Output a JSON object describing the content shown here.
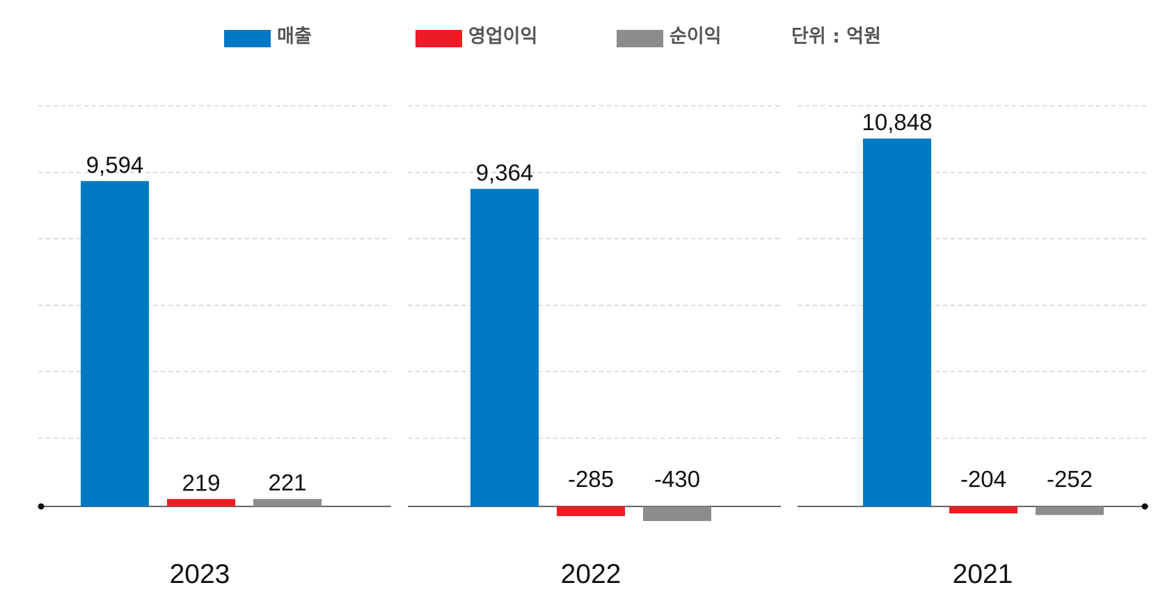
{
  "chart_data": {
    "type": "bar",
    "unit_label": "단위 : 억원",
    "legend_position": "top",
    "grid": true,
    "ylim": [
      -430,
      12000
    ],
    "series": [
      {
        "name": "매출",
        "color": "#0079c4"
      },
      {
        "name": "영업이익",
        "color": "#ec1c24"
      },
      {
        "name": "순이익",
        "color": "#8c8c8c"
      }
    ],
    "groups": [
      {
        "year": "2023",
        "values": [
          9594,
          219,
          221
        ],
        "labels": [
          "9,594",
          "219",
          "221"
        ]
      },
      {
        "year": "2022",
        "values": [
          9364,
          -285,
          -430
        ],
        "labels": [
          "9,364",
          "-285",
          "-430"
        ]
      },
      {
        "year": "2021",
        "values": [
          10848,
          -204,
          -252
        ],
        "labels": [
          "10,848",
          "-204",
          "-252"
        ]
      }
    ]
  }
}
